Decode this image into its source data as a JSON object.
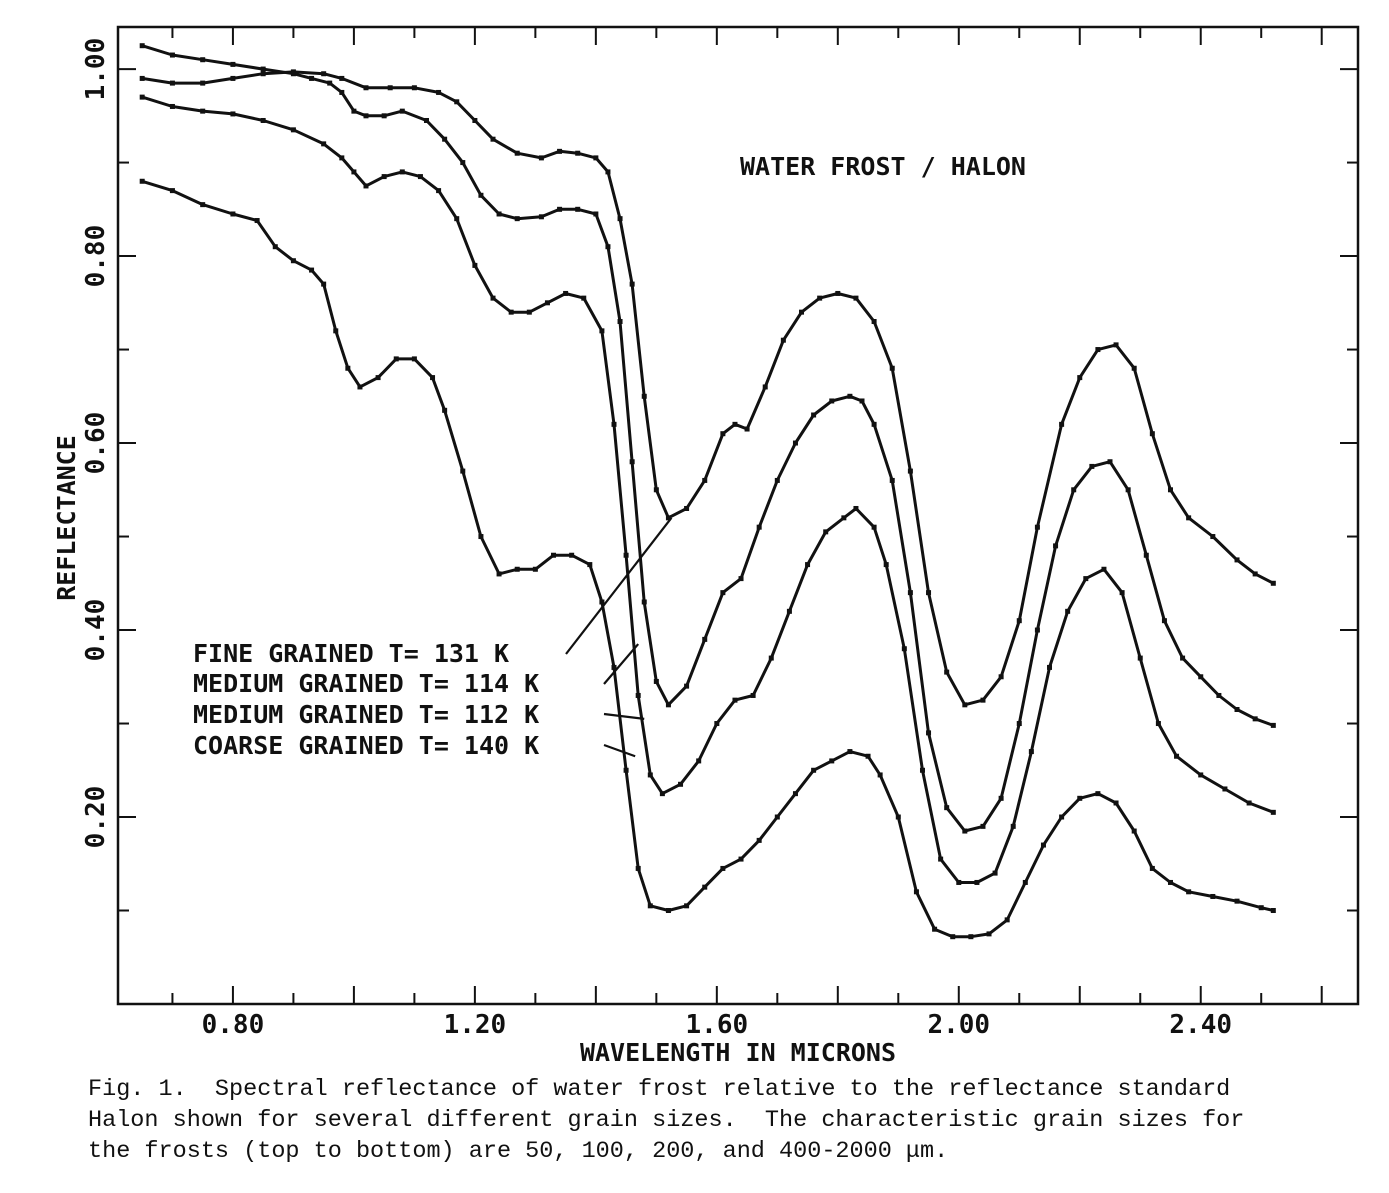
{
  "chart_data": {
    "type": "line",
    "title": "WATER FROST / HALON",
    "xlabel": "WAVELENGTH IN MICRONS",
    "ylabel": "REFLECTANCE",
    "xlim": [
      0.61,
      2.66
    ],
    "ylim": [
      0.0,
      1.045
    ],
    "xticks": [
      "0.80",
      "1.20",
      "1.60",
      "2.00",
      "2.40"
    ],
    "yticks": [
      "0.20",
      "0.40",
      "0.60",
      "0.80",
      "1.00"
    ],
    "grid": false,
    "series": [
      {
        "name": "FINE GRAINED T= 131 K",
        "points": [
          [
            0.65,
            0.99
          ],
          [
            0.7,
            0.985
          ],
          [
            0.75,
            0.985
          ],
          [
            0.8,
            0.99
          ],
          [
            0.85,
            0.995
          ],
          [
            0.9,
            0.997
          ],
          [
            0.95,
            0.995
          ],
          [
            0.98,
            0.99
          ],
          [
            1.02,
            0.98
          ],
          [
            1.06,
            0.98
          ],
          [
            1.1,
            0.98
          ],
          [
            1.14,
            0.975
          ],
          [
            1.17,
            0.965
          ],
          [
            1.2,
            0.945
          ],
          [
            1.23,
            0.925
          ],
          [
            1.27,
            0.91
          ],
          [
            1.31,
            0.905
          ],
          [
            1.34,
            0.912
          ],
          [
            1.37,
            0.91
          ],
          [
            1.4,
            0.905
          ],
          [
            1.42,
            0.89
          ],
          [
            1.44,
            0.84
          ],
          [
            1.46,
            0.77
          ],
          [
            1.48,
            0.65
          ],
          [
            1.5,
            0.55
          ],
          [
            1.52,
            0.52
          ],
          [
            1.55,
            0.53
          ],
          [
            1.58,
            0.56
          ],
          [
            1.61,
            0.61
          ],
          [
            1.63,
            0.62
          ],
          [
            1.65,
            0.615
          ],
          [
            1.68,
            0.66
          ],
          [
            1.71,
            0.71
          ],
          [
            1.74,
            0.74
          ],
          [
            1.77,
            0.755
          ],
          [
            1.8,
            0.76
          ],
          [
            1.83,
            0.755
          ],
          [
            1.86,
            0.73
          ],
          [
            1.89,
            0.68
          ],
          [
            1.92,
            0.57
          ],
          [
            1.95,
            0.44
          ],
          [
            1.98,
            0.355
          ],
          [
            2.01,
            0.32
          ],
          [
            2.04,
            0.325
          ],
          [
            2.07,
            0.35
          ],
          [
            2.1,
            0.41
          ],
          [
            2.13,
            0.51
          ],
          [
            2.17,
            0.62
          ],
          [
            2.2,
            0.67
          ],
          [
            2.23,
            0.7
          ],
          [
            2.26,
            0.705
          ],
          [
            2.29,
            0.68
          ],
          [
            2.32,
            0.61
          ],
          [
            2.35,
            0.55
          ],
          [
            2.38,
            0.52
          ],
          [
            2.42,
            0.5
          ],
          [
            2.46,
            0.475
          ],
          [
            2.49,
            0.46
          ],
          [
            2.52,
            0.45
          ]
        ]
      },
      {
        "name": "MEDIUM GRAINED T= 114 K",
        "points": [
          [
            0.65,
            1.025
          ],
          [
            0.7,
            1.015
          ],
          [
            0.75,
            1.01
          ],
          [
            0.8,
            1.005
          ],
          [
            0.85,
            1.0
          ],
          [
            0.9,
            0.995
          ],
          [
            0.93,
            0.99
          ],
          [
            0.96,
            0.985
          ],
          [
            0.98,
            0.975
          ],
          [
            1.0,
            0.955
          ],
          [
            1.02,
            0.95
          ],
          [
            1.05,
            0.95
          ],
          [
            1.08,
            0.955
          ],
          [
            1.12,
            0.945
          ],
          [
            1.15,
            0.925
          ],
          [
            1.18,
            0.9
          ],
          [
            1.21,
            0.865
          ],
          [
            1.24,
            0.845
          ],
          [
            1.27,
            0.84
          ],
          [
            1.31,
            0.842
          ],
          [
            1.34,
            0.85
          ],
          [
            1.37,
            0.85
          ],
          [
            1.4,
            0.845
          ],
          [
            1.42,
            0.81
          ],
          [
            1.44,
            0.73
          ],
          [
            1.46,
            0.58
          ],
          [
            1.48,
            0.43
          ],
          [
            1.5,
            0.345
          ],
          [
            1.52,
            0.32
          ],
          [
            1.55,
            0.34
          ],
          [
            1.58,
            0.39
          ],
          [
            1.61,
            0.44
          ],
          [
            1.64,
            0.455
          ],
          [
            1.67,
            0.51
          ],
          [
            1.7,
            0.56
          ],
          [
            1.73,
            0.6
          ],
          [
            1.76,
            0.63
          ],
          [
            1.79,
            0.645
          ],
          [
            1.82,
            0.65
          ],
          [
            1.84,
            0.645
          ],
          [
            1.86,
            0.62
          ],
          [
            1.89,
            0.56
          ],
          [
            1.92,
            0.44
          ],
          [
            1.95,
            0.29
          ],
          [
            1.98,
            0.21
          ],
          [
            2.01,
            0.185
          ],
          [
            2.04,
            0.19
          ],
          [
            2.07,
            0.22
          ],
          [
            2.1,
            0.3
          ],
          [
            2.13,
            0.4
          ],
          [
            2.16,
            0.49
          ],
          [
            2.19,
            0.55
          ],
          [
            2.22,
            0.575
          ],
          [
            2.25,
            0.58
          ],
          [
            2.28,
            0.55
          ],
          [
            2.31,
            0.48
          ],
          [
            2.34,
            0.41
          ],
          [
            2.37,
            0.37
          ],
          [
            2.4,
            0.35
          ],
          [
            2.43,
            0.33
          ],
          [
            2.46,
            0.315
          ],
          [
            2.49,
            0.305
          ],
          [
            2.52,
            0.298
          ]
        ]
      },
      {
        "name": "MEDIUM GRAINED T= 112 K",
        "points": [
          [
            0.65,
            0.97
          ],
          [
            0.7,
            0.96
          ],
          [
            0.75,
            0.955
          ],
          [
            0.8,
            0.952
          ],
          [
            0.85,
            0.945
          ],
          [
            0.9,
            0.935
          ],
          [
            0.95,
            0.92
          ],
          [
            0.98,
            0.905
          ],
          [
            1.0,
            0.89
          ],
          [
            1.02,
            0.875
          ],
          [
            1.05,
            0.885
          ],
          [
            1.08,
            0.89
          ],
          [
            1.11,
            0.885
          ],
          [
            1.14,
            0.87
          ],
          [
            1.17,
            0.84
          ],
          [
            1.2,
            0.79
          ],
          [
            1.23,
            0.755
          ],
          [
            1.26,
            0.74
          ],
          [
            1.29,
            0.74
          ],
          [
            1.32,
            0.75
          ],
          [
            1.35,
            0.76
          ],
          [
            1.38,
            0.755
          ],
          [
            1.41,
            0.72
          ],
          [
            1.43,
            0.62
          ],
          [
            1.45,
            0.48
          ],
          [
            1.47,
            0.33
          ],
          [
            1.49,
            0.245
          ],
          [
            1.51,
            0.225
          ],
          [
            1.54,
            0.235
          ],
          [
            1.57,
            0.26
          ],
          [
            1.6,
            0.3
          ],
          [
            1.63,
            0.325
          ],
          [
            1.66,
            0.33
          ],
          [
            1.69,
            0.37
          ],
          [
            1.72,
            0.42
          ],
          [
            1.75,
            0.47
          ],
          [
            1.78,
            0.505
          ],
          [
            1.81,
            0.52
          ],
          [
            1.83,
            0.53
          ],
          [
            1.86,
            0.51
          ],
          [
            1.88,
            0.47
          ],
          [
            1.91,
            0.38
          ],
          [
            1.94,
            0.25
          ],
          [
            1.97,
            0.155
          ],
          [
            2.0,
            0.13
          ],
          [
            2.03,
            0.13
          ],
          [
            2.06,
            0.14
          ],
          [
            2.09,
            0.19
          ],
          [
            2.12,
            0.27
          ],
          [
            2.15,
            0.36
          ],
          [
            2.18,
            0.42
          ],
          [
            2.21,
            0.455
          ],
          [
            2.24,
            0.465
          ],
          [
            2.27,
            0.44
          ],
          [
            2.3,
            0.37
          ],
          [
            2.33,
            0.3
          ],
          [
            2.36,
            0.265
          ],
          [
            2.4,
            0.245
          ],
          [
            2.44,
            0.23
          ],
          [
            2.48,
            0.215
          ],
          [
            2.52,
            0.205
          ]
        ]
      },
      {
        "name": "COARSE GRAINED T= 140 K",
        "points": [
          [
            0.65,
            0.88
          ],
          [
            0.7,
            0.87
          ],
          [
            0.75,
            0.855
          ],
          [
            0.8,
            0.845
          ],
          [
            0.84,
            0.838
          ],
          [
            0.87,
            0.81
          ],
          [
            0.9,
            0.795
          ],
          [
            0.93,
            0.785
          ],
          [
            0.95,
            0.77
          ],
          [
            0.97,
            0.72
          ],
          [
            0.99,
            0.68
          ],
          [
            1.01,
            0.66
          ],
          [
            1.04,
            0.67
          ],
          [
            1.07,
            0.69
          ],
          [
            1.1,
            0.69
          ],
          [
            1.13,
            0.67
          ],
          [
            1.15,
            0.635
          ],
          [
            1.18,
            0.57
          ],
          [
            1.21,
            0.5
          ],
          [
            1.24,
            0.46
          ],
          [
            1.27,
            0.465
          ],
          [
            1.3,
            0.465
          ],
          [
            1.33,
            0.48
          ],
          [
            1.36,
            0.48
          ],
          [
            1.39,
            0.47
          ],
          [
            1.41,
            0.43
          ],
          [
            1.43,
            0.36
          ],
          [
            1.45,
            0.25
          ],
          [
            1.47,
            0.145
          ],
          [
            1.49,
            0.105
          ],
          [
            1.52,
            0.1
          ],
          [
            1.55,
            0.105
          ],
          [
            1.58,
            0.125
          ],
          [
            1.61,
            0.145
          ],
          [
            1.64,
            0.155
          ],
          [
            1.67,
            0.175
          ],
          [
            1.7,
            0.2
          ],
          [
            1.73,
            0.225
          ],
          [
            1.76,
            0.25
          ],
          [
            1.79,
            0.26
          ],
          [
            1.82,
            0.27
          ],
          [
            1.85,
            0.265
          ],
          [
            1.87,
            0.245
          ],
          [
            1.9,
            0.2
          ],
          [
            1.93,
            0.12
          ],
          [
            1.96,
            0.08
          ],
          [
            1.99,
            0.072
          ],
          [
            2.02,
            0.072
          ],
          [
            2.05,
            0.075
          ],
          [
            2.08,
            0.09
          ],
          [
            2.11,
            0.13
          ],
          [
            2.14,
            0.17
          ],
          [
            2.17,
            0.2
          ],
          [
            2.2,
            0.22
          ],
          [
            2.23,
            0.225
          ],
          [
            2.26,
            0.215
          ],
          [
            2.29,
            0.185
          ],
          [
            2.32,
            0.145
          ],
          [
            2.35,
            0.13
          ],
          [
            2.38,
            0.12
          ],
          [
            2.42,
            0.115
          ],
          [
            2.46,
            0.11
          ],
          [
            2.5,
            0.103
          ],
          [
            2.52,
            0.1
          ]
        ]
      }
    ]
  },
  "annotations": [
    {
      "text": "FINE GRAINED T= 131 K",
      "target": [
        1.525,
        0.52
      ]
    },
    {
      "text": "MEDIUM GRAINED T= 114 K",
      "target": [
        1.47,
        0.385
      ]
    },
    {
      "text": "MEDIUM GRAINED T= 112 K",
      "target": [
        1.48,
        0.305
      ]
    },
    {
      "text": "COARSE GRAINED T= 140 K",
      "target": [
        1.465,
        0.265
      ]
    }
  ],
  "caption": {
    "line1": "Fig. 1.  Spectral reflectance of water frost relative to the reflectance standard",
    "line2": "Halon shown for several different grain sizes.  The characteristic grain sizes for",
    "line3": "the frosts (top to bottom) are 50, 100, 200, and 400-2000 μm."
  }
}
